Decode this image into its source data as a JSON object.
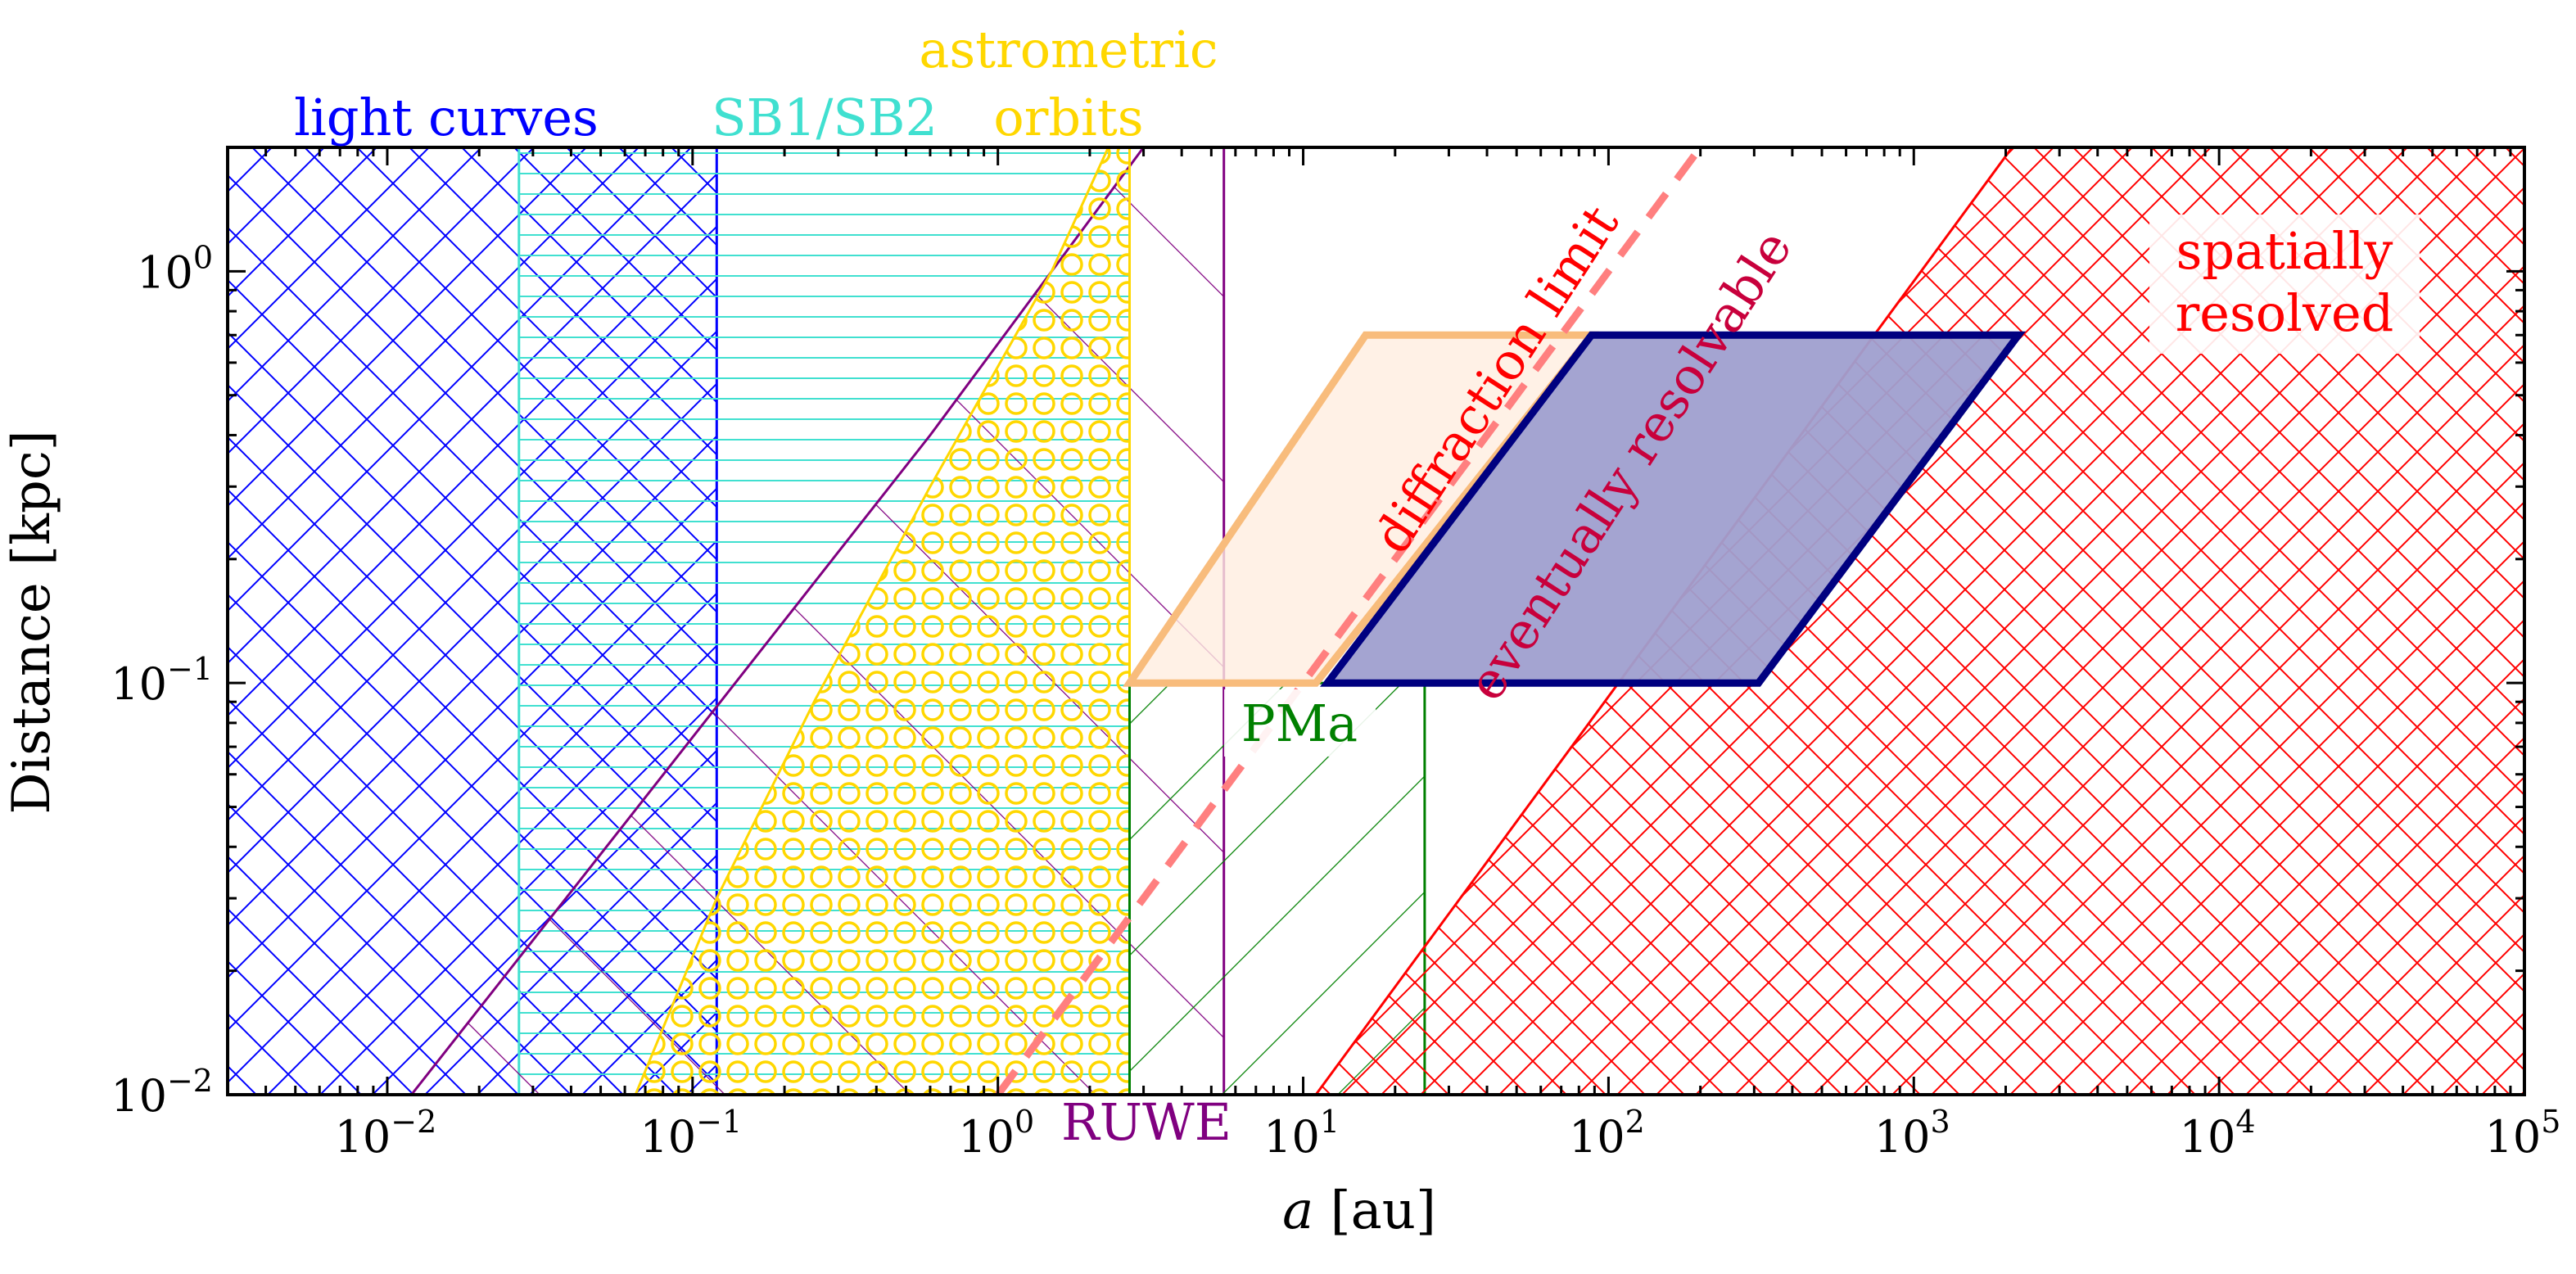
{
  "chart_data": {
    "type": "area",
    "xlabel_var": "a",
    "xlabel_unit": "[au]",
    "ylabel": "Distance [kpc]",
    "xscale": "log",
    "yscale": "log",
    "xlim": [
      0.003,
      100000
    ],
    "ylim": [
      0.01,
      2
    ],
    "x_ticks": [
      0.01,
      0.1,
      1,
      10,
      100,
      1000,
      10000,
      100000
    ],
    "x_tick_labels": [
      {
        "base": "10",
        "exp": "−2"
      },
      {
        "base": "10",
        "exp": "−1"
      },
      {
        "base": "10",
        "exp": "0"
      },
      {
        "base": "10",
        "exp": "1"
      },
      {
        "base": "10",
        "exp": "2"
      },
      {
        "base": "10",
        "exp": "3"
      },
      {
        "base": "10",
        "exp": "4"
      },
      {
        "base": "10",
        "exp": "5"
      }
    ],
    "y_ticks": [
      0.01,
      0.1,
      1
    ],
    "y_tick_labels": [
      {
        "base": "10",
        "exp": "−2"
      },
      {
        "base": "10",
        "exp": "−1"
      },
      {
        "base": "10",
        "exp": "0"
      }
    ],
    "grid": false,
    "regions": [
      {
        "id": "light-curves",
        "label": "light curves",
        "color": "#0000ff",
        "hatch": "cross-diagonal",
        "polygon": [
          [
            0.003,
            0.01
          ],
          [
            0.12,
            0.01
          ],
          [
            0.12,
            2
          ],
          [
            0.003,
            2
          ]
        ]
      },
      {
        "id": "sb1-sb2",
        "label": "SB1/SB2",
        "color": "#40e0d0",
        "hatch": "horizontal",
        "polygon": [
          [
            0.027,
            0.01
          ],
          [
            2.7,
            0.01
          ],
          [
            2.7,
            2
          ],
          [
            0.027,
            2
          ]
        ]
      },
      {
        "id": "ruwe",
        "label": "RUWE",
        "color": "#800080",
        "hatch": "diagonal",
        "polygon": [
          [
            0.012,
            0.01
          ],
          [
            5.5,
            0.01
          ],
          [
            5.5,
            2
          ],
          [
            3.0,
            2
          ],
          [
            0.6,
            0.4
          ]
        ]
      },
      {
        "id": "astrometric-orbits",
        "label_lines": [
          "astrometric",
          "orbits"
        ],
        "color": "#ffd700",
        "hatch": "circles",
        "polygon": [
          [
            0.065,
            0.01
          ],
          [
            2.7,
            0.01
          ],
          [
            2.7,
            2
          ],
          [
            2.3,
            2
          ],
          [
            1.5,
            1.0
          ],
          [
            0.6,
            0.3
          ],
          [
            0.25,
            0.09
          ],
          [
            0.12,
            0.03
          ]
        ]
      },
      {
        "id": "pma",
        "label": "PMa",
        "color": "#008000",
        "hatch": "back-diagonal",
        "polygon": [
          [
            2.7,
            0.01
          ],
          [
            25,
            0.01
          ],
          [
            25,
            0.1
          ],
          [
            2.7,
            0.1
          ]
        ]
      },
      {
        "id": "spatially-resolved",
        "label_lines": [
          "spatially",
          "resolved"
        ],
        "color": "#ff0000",
        "hatch": "cross-diagonal",
        "polygon": [
          [
            11,
            0.01
          ],
          [
            100000,
            0.01
          ],
          [
            100000,
            2
          ],
          [
            2100,
            2
          ]
        ]
      },
      {
        "id": "gaia-window",
        "color": "#f8bc7c",
        "fill": "#ffeee0",
        "polygon": [
          [
            2.7,
            0.1
          ],
          [
            11,
            0.1
          ],
          [
            88,
            0.7
          ],
          [
            16,
            0.7
          ]
        ]
      },
      {
        "id": "eventually-resolvable",
        "color": "#000080",
        "fill": "#9f9fcf",
        "polygon": [
          [
            12,
            0.1
          ],
          [
            310,
            0.1
          ],
          [
            2200,
            0.7
          ],
          [
            88,
            0.7
          ]
        ]
      }
    ],
    "lines": [
      {
        "id": "diffraction-limit",
        "label": "diffraction limit",
        "color": "#ff7f7f",
        "style": "dashed",
        "x": [
          1.0,
          200
        ],
        "y": [
          0.01,
          2
        ]
      }
    ],
    "annotations": [
      {
        "id": "eventually-resolvable-label",
        "text": "eventually resolvable",
        "color": "#c8003c"
      }
    ]
  }
}
